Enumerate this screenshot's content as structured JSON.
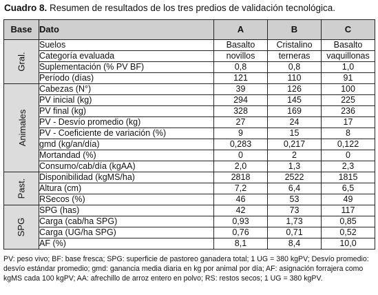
{
  "title": {
    "prefix": "Cuadro 8.",
    "text": " Resumen de resultados de los tres predios de validación tecnológica."
  },
  "header": {
    "base": "Base",
    "dato": "Dato",
    "cols": [
      "A",
      "B",
      "C"
    ]
  },
  "groups": [
    {
      "base": "Gral.",
      "rows": [
        {
          "dato": "Suelos",
          "v": [
            "Basalto",
            "Cristalino",
            "Basalto"
          ]
        },
        {
          "dato": "Categoría evaluada",
          "v": [
            "novillos",
            "terneras",
            "vaquillonas"
          ]
        },
        {
          "dato": "Suplementación (% PV BF)",
          "v": [
            "0,8",
            "0,8",
            "1,0"
          ]
        },
        {
          "dato": "Período (días)",
          "v": [
            "121",
            "110",
            "91"
          ]
        }
      ]
    },
    {
      "base": "Animales",
      "rows": [
        {
          "dato": "Cabezas (N°)",
          "v": [
            "39",
            "126",
            "100"
          ]
        },
        {
          "dato": "PV inicial (kg)",
          "v": [
            "294",
            "145",
            "225"
          ]
        },
        {
          "dato": "PV final (kg)",
          "v": [
            "328",
            "169",
            "236"
          ]
        },
        {
          "dato": "PV - Desvío promedio (kg)",
          "v": [
            "27",
            "24",
            "17"
          ]
        },
        {
          "dato": "PV - Coeficiente de variación (%)",
          "v": [
            "9",
            "15",
            "8"
          ]
        },
        {
          "dato": "gmd (kg/an/día)",
          "v": [
            "0,283",
            "0,217",
            "0,122"
          ]
        },
        {
          "dato": "Mortandad (%)",
          "v": [
            "0",
            "2",
            "0"
          ]
        },
        {
          "dato": "Consumo/cab/día (kgAA)",
          "v": [
            "2,0",
            "1,3",
            "2,3"
          ]
        }
      ]
    },
    {
      "base": "Past.",
      "rows": [
        {
          "dato": "Disponibilidad (kgMS/ha)",
          "v": [
            "2818",
            "2522",
            "1815"
          ]
        },
        {
          "dato": "Altura (cm)",
          "v": [
            "7,2",
            "6,4",
            "6,5"
          ]
        },
        {
          "dato": "RSecos (%)",
          "v": [
            "46",
            "53",
            "49"
          ]
        }
      ]
    },
    {
      "base": "SPG",
      "rows": [
        {
          "dato": "SPG (has)",
          "v": [
            "42",
            "73",
            "117"
          ]
        },
        {
          "dato": "Carga (cab/ha SPG)",
          "v": [
            "0,93",
            "1,73",
            "0,85"
          ]
        },
        {
          "dato": "Carga (UG/ha SPG)",
          "v": [
            "0,76",
            "0,71",
            "0,52"
          ]
        },
        {
          "dato": "AF (%)",
          "v": [
            "8,1",
            "8,4",
            "10,0"
          ]
        }
      ]
    }
  ],
  "footnote": "PV: peso vivo; BF: base fresca; SPG: superficie de pastoreo ganadera total; 1 UG = 380 kgPV; Desvío promedio: desvío estándar promedio; gmd: ganancia media diaria en kg por animal por día; AF: asignación forrajera como kgMS cada 100 kgPV; AA: afrechillo de arroz entero en polvo; RS: restos secos; 1 UG = 380 kgPV."
}
